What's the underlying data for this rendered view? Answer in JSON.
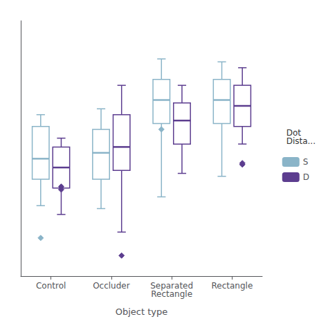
{
  "chart_data": {
    "type": "boxplot",
    "xlabel": "Object type",
    "categories": [
      "Control",
      "Occluder",
      "Separated\nRectangle",
      "Rectangle"
    ],
    "ylim": [
      0.05,
      0.92
    ],
    "grid": false,
    "tick_labels": "x",
    "legend": "right",
    "legend_title": "Dot\nDista...",
    "marker": "diamond",
    "series": [
      {
        "name": "S",
        "color": "#8ab4c8",
        "values": [
          {
            "whislo": 0.29,
            "q1": 0.38,
            "med": 0.45,
            "q3": 0.56,
            "whishi": 0.6,
            "fliers": [
              0.18
            ]
          },
          {
            "whislo": 0.28,
            "q1": 0.38,
            "med": 0.47,
            "q3": 0.55,
            "whishi": 0.62,
            "fliers": []
          },
          {
            "whislo": 0.32,
            "q1": 0.57,
            "med": 0.65,
            "q3": 0.72,
            "whishi": 0.79,
            "fliers": [
              0.55
            ]
          },
          {
            "whislo": 0.39,
            "q1": 0.57,
            "med": 0.65,
            "q3": 0.72,
            "whishi": 0.78,
            "fliers": []
          }
        ]
      },
      {
        "name": "D",
        "color": "#5c3d8f",
        "values": [
          {
            "whislo": 0.26,
            "q1": 0.35,
            "med": 0.42,
            "q3": 0.49,
            "whishi": 0.52,
            "fliers": [
              0.345,
              0.355
            ]
          },
          {
            "whislo": 0.2,
            "q1": 0.41,
            "med": 0.49,
            "q3": 0.6,
            "whishi": 0.7,
            "fliers": [
              0.12
            ]
          },
          {
            "whislo": 0.4,
            "q1": 0.5,
            "med": 0.58,
            "q3": 0.64,
            "whishi": 0.7,
            "fliers": []
          },
          {
            "whislo": 0.5,
            "q1": 0.56,
            "med": 0.63,
            "q3": 0.7,
            "whishi": 0.76,
            "fliers": [
              0.43,
              0.435
            ]
          }
        ]
      }
    ]
  }
}
